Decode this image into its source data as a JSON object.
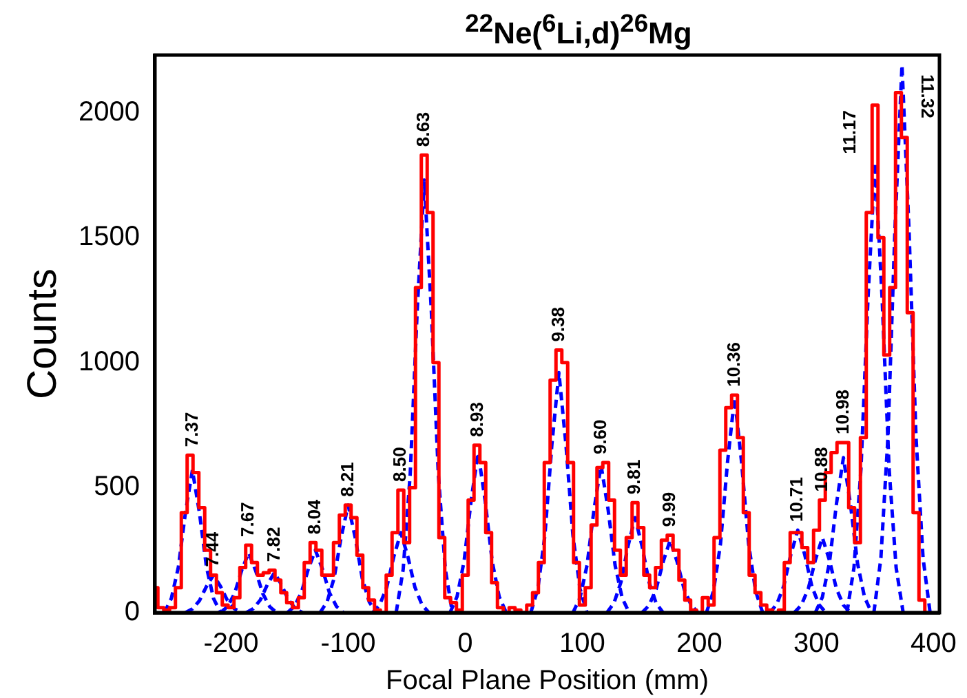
{
  "chart_data": {
    "type": "line",
    "title": "$^{22}$Ne($^{6}$Li,d)$^{26}$Mg",
    "xlabel": "Focal Plane Position (mm)",
    "ylabel": "Counts",
    "xlim": [
      -265,
      405
    ],
    "xticks": [
      -200,
      -100,
      0,
      100,
      200,
      300,
      400
    ],
    "ylim": [
      0,
      2230
    ],
    "yticks": [
      0,
      500,
      1000,
      1500,
      2000
    ],
    "grid": false,
    "legend": false,
    "marker": "none",
    "series": [
      {
        "type": "step",
        "color": "#ff0000",
        "line_style": "solid",
        "x": [
          -265,
          -260,
          -255,
          -250,
          -245,
          -240,
          -235,
          -230,
          -225,
          -220,
          -215,
          -210,
          -205,
          -200,
          -195,
          -190,
          -185,
          -180,
          -175,
          -170,
          -165,
          -160,
          -155,
          -150,
          -145,
          -140,
          -135,
          -130,
          -125,
          -120,
          -115,
          -110,
          -105,
          -100,
          -95,
          -90,
          -85,
          -80,
          -75,
          -70,
          -65,
          -60,
          -55,
          -50,
          -45,
          -40,
          -35,
          -30,
          -25,
          -20,
          -15,
          -10,
          -5,
          0,
          5,
          10,
          15,
          20,
          25,
          30,
          35,
          40,
          45,
          50,
          55,
          60,
          65,
          70,
          75,
          80,
          85,
          90,
          95,
          100,
          105,
          110,
          115,
          120,
          125,
          130,
          135,
          140,
          145,
          150,
          155,
          160,
          165,
          170,
          175,
          180,
          185,
          190,
          195,
          200,
          205,
          210,
          215,
          220,
          225,
          230,
          235,
          240,
          245,
          250,
          255,
          260,
          265,
          270,
          275,
          280,
          285,
          290,
          295,
          300,
          305,
          310,
          315,
          320,
          325,
          330,
          335,
          340,
          345,
          350,
          355,
          360,
          365,
          370,
          375,
          380,
          385,
          390,
          395
        ],
        "values": [
          100,
          20,
          10,
          20,
          100,
          400,
          630,
          560,
          420,
          250,
          150,
          80,
          30,
          20,
          60,
          180,
          270,
          200,
          150,
          160,
          170,
          130,
          80,
          40,
          20,
          60,
          200,
          280,
          250,
          150,
          150,
          280,
          390,
          430,
          380,
          230,
          100,
          50,
          10,
          0,
          150,
          320,
          490,
          280,
          500,
          1300,
          1830,
          1600,
          1000,
          300,
          60,
          40,
          10,
          150,
          450,
          670,
          600,
          320,
          120,
          20,
          0,
          20,
          10,
          0,
          30,
          80,
          200,
          600,
          930,
          1050,
          1000,
          600,
          200,
          30,
          100,
          350,
          580,
          600,
          450,
          250,
          150,
          300,
          440,
          340,
          150,
          100,
          180,
          290,
          310,
          250,
          130,
          50,
          10,
          0,
          60,
          30,
          300,
          650,
          820,
          870,
          700,
          400,
          150,
          80,
          30,
          10,
          0,
          10,
          200,
          320,
          320,
          260,
          200,
          330,
          450,
          560,
          640,
          680,
          680,
          420,
          280,
          700,
          1600,
          2030,
          1500,
          1030,
          1300,
          2080,
          1900,
          1200,
          400,
          50,
          0
        ]
      },
      {
        "type": "line",
        "color": "#0000ff",
        "line_style": "dashed",
        "x": [
          -257,
          -251,
          -245,
          -239,
          -233,
          -227,
          -221,
          -215,
          -209
        ],
        "values": [
          0,
          57,
          182,
          399,
          570,
          399,
          182,
          57,
          0
        ]
      },
      {
        "type": "line",
        "color": "#0000ff",
        "line_style": "dashed",
        "x": [
          -239,
          -233,
          -227,
          -221,
          -215,
          -209,
          -203,
          -197,
          -191
        ],
        "values": [
          0,
          15,
          48,
          105,
          150,
          105,
          48,
          15,
          0
        ]
      },
      {
        "type": "line",
        "color": "#0000ff",
        "line_style": "dashed",
        "x": [
          -209,
          -203,
          -197,
          -191,
          -185,
          -179,
          -173,
          -167,
          -161
        ],
        "values": [
          0,
          24,
          77,
          168,
          240,
          168,
          77,
          24,
          0
        ]
      },
      {
        "type": "line",
        "color": "#0000ff",
        "line_style": "dashed",
        "x": [
          -187,
          -181,
          -175,
          -169,
          -163,
          -157,
          -151,
          -145,
          -139
        ],
        "values": [
          0,
          16,
          51,
          112,
          160,
          112,
          51,
          16,
          0
        ]
      },
      {
        "type": "line",
        "color": "#0000ff",
        "line_style": "dashed",
        "x": [
          -152,
          -146,
          -140,
          -134,
          -128,
          -122,
          -116,
          -110,
          -104
        ],
        "values": [
          0,
          25,
          80,
          175,
          250,
          175,
          80,
          25,
          0
        ]
      },
      {
        "type": "line",
        "color": "#0000ff",
        "line_style": "dashed",
        "x": [
          -124,
          -118,
          -112,
          -106,
          -100,
          -94,
          -88,
          -82,
          -76
        ],
        "values": [
          0,
          43,
          138,
          301,
          430,
          301,
          138,
          43,
          0
        ]
      },
      {
        "type": "line",
        "color": "#0000ff",
        "line_style": "dashed",
        "x": [
          -79,
          -73,
          -67,
          -61,
          -55,
          -49,
          -43,
          -37,
          -31
        ],
        "values": [
          0,
          32,
          102,
          224,
          320,
          224,
          102,
          32,
          0
        ]
      },
      {
        "type": "line",
        "color": "#0000ff",
        "line_style": "dashed",
        "x": [
          -59,
          -53,
          -47,
          -41,
          -35,
          -29,
          -23,
          -17,
          -11
        ],
        "values": [
          0,
          173,
          554,
          1211,
          1730,
          1211,
          554,
          173,
          0
        ]
      },
      {
        "type": "line",
        "color": "#0000ff",
        "line_style": "dashed",
        "x": [
          -13,
          -7,
          -1,
          5,
          11,
          17,
          23,
          29,
          35
        ],
        "values": [
          0,
          64,
          205,
          448,
          640,
          448,
          205,
          64,
          0
        ]
      },
      {
        "type": "line",
        "color": "#0000ff",
        "line_style": "dashed",
        "x": [
          56,
          62,
          68,
          74,
          80,
          86,
          92,
          98,
          104
        ],
        "values": [
          0,
          96,
          307,
          672,
          960,
          672,
          307,
          96,
          0
        ]
      },
      {
        "type": "line",
        "color": "#0000ff",
        "line_style": "dashed",
        "x": [
          92,
          98,
          104,
          110,
          116,
          122,
          128,
          134,
          140
        ],
        "values": [
          0,
          59,
          189,
          413,
          590,
          413,
          189,
          59,
          0
        ]
      },
      {
        "type": "line",
        "color": "#0000ff",
        "line_style": "dashed",
        "x": [
          121,
          127,
          133,
          139,
          145,
          151,
          157,
          163,
          169
        ],
        "values": [
          0,
          38,
          122,
          266,
          380,
          266,
          122,
          38,
          0
        ]
      },
      {
        "type": "line",
        "color": "#0000ff",
        "line_style": "dashed",
        "x": [
          151,
          157,
          163,
          169,
          175,
          181,
          187,
          193,
          199
        ],
        "values": [
          0,
          29,
          93,
          203,
          290,
          203,
          93,
          29,
          0
        ]
      },
      {
        "type": "line",
        "color": "#0000ff",
        "line_style": "dashed",
        "x": [
          206,
          212,
          218,
          224,
          230,
          236,
          242,
          248,
          254
        ],
        "values": [
          0,
          86,
          275,
          602,
          860,
          602,
          275,
          86,
          0
        ]
      },
      {
        "type": "line",
        "color": "#0000ff",
        "line_style": "dashed",
        "x": [
          260,
          266,
          272,
          278,
          284,
          290,
          296,
          302,
          308
        ],
        "values": [
          0,
          33,
          106,
          231,
          330,
          231,
          106,
          33,
          0
        ]
      },
      {
        "type": "line",
        "color": "#0000ff",
        "line_style": "dashed",
        "x": [
          281,
          287,
          293,
          299,
          305,
          311,
          317,
          323,
          329
        ],
        "values": [
          0,
          30,
          96,
          210,
          300,
          210,
          96,
          30,
          0
        ]
      },
      {
        "type": "line",
        "color": "#0000ff",
        "line_style": "dashed",
        "x": [
          299,
          305,
          311,
          317,
          323,
          329,
          335,
          341,
          347
        ],
        "values": [
          0,
          62,
          198,
          434,
          620,
          434,
          198,
          62,
          0
        ]
      },
      {
        "type": "line",
        "color": "#0000ff",
        "line_style": "dashed",
        "x": [
          326,
          332,
          338,
          344,
          350,
          356,
          362,
          368,
          374
        ],
        "values": [
          0,
          180,
          576,
          1260,
          1800,
          1260,
          576,
          180,
          0
        ]
      },
      {
        "type": "line",
        "color": "#0000ff",
        "line_style": "dashed",
        "x": [
          349,
          355,
          361,
          367,
          373,
          379,
          385,
          391,
          397
        ],
        "values": [
          0,
          219,
          701,
          1533,
          2190,
          1533,
          701,
          219,
          0
        ]
      }
    ],
    "annotations": [
      {
        "text": "7.37",
        "x": -233,
        "y": 570
      },
      {
        "text": "7.44",
        "x": -215,
        "y": 150
      },
      {
        "text": "7.67",
        "x": -185,
        "y": 240
      },
      {
        "text": "7.82",
        "x": -163,
        "y": 160
      },
      {
        "text": "8.04",
        "x": -128,
        "y": 250
      },
      {
        "text": "8.21",
        "x": -100,
        "y": 430
      },
      {
        "text": "8.50",
        "x": -55,
        "y": 320
      },
      {
        "text": "8.63",
        "x": -35,
        "y": 1730
      },
      {
        "text": "8.93",
        "x": 11,
        "y": 640
      },
      {
        "text": "9.38",
        "x": 80,
        "y": 960
      },
      {
        "text": "9.60",
        "x": 116,
        "y": 590
      },
      {
        "text": "9.81",
        "x": 145,
        "y": 380
      },
      {
        "text": "9.99",
        "x": 175,
        "y": 290
      },
      {
        "text": "10.36",
        "x": 230,
        "y": 860
      },
      {
        "text": "10.71",
        "x": 284,
        "y": 330
      },
      {
        "text": "10.88",
        "x": 305,
        "y": 300
      },
      {
        "text": "10.98",
        "x": 323,
        "y": 620
      },
      {
        "text": "11.17",
        "x": 350,
        "y": 1800
      },
      {
        "text": "11.32",
        "x": 373,
        "y": 2190
      }
    ]
  }
}
